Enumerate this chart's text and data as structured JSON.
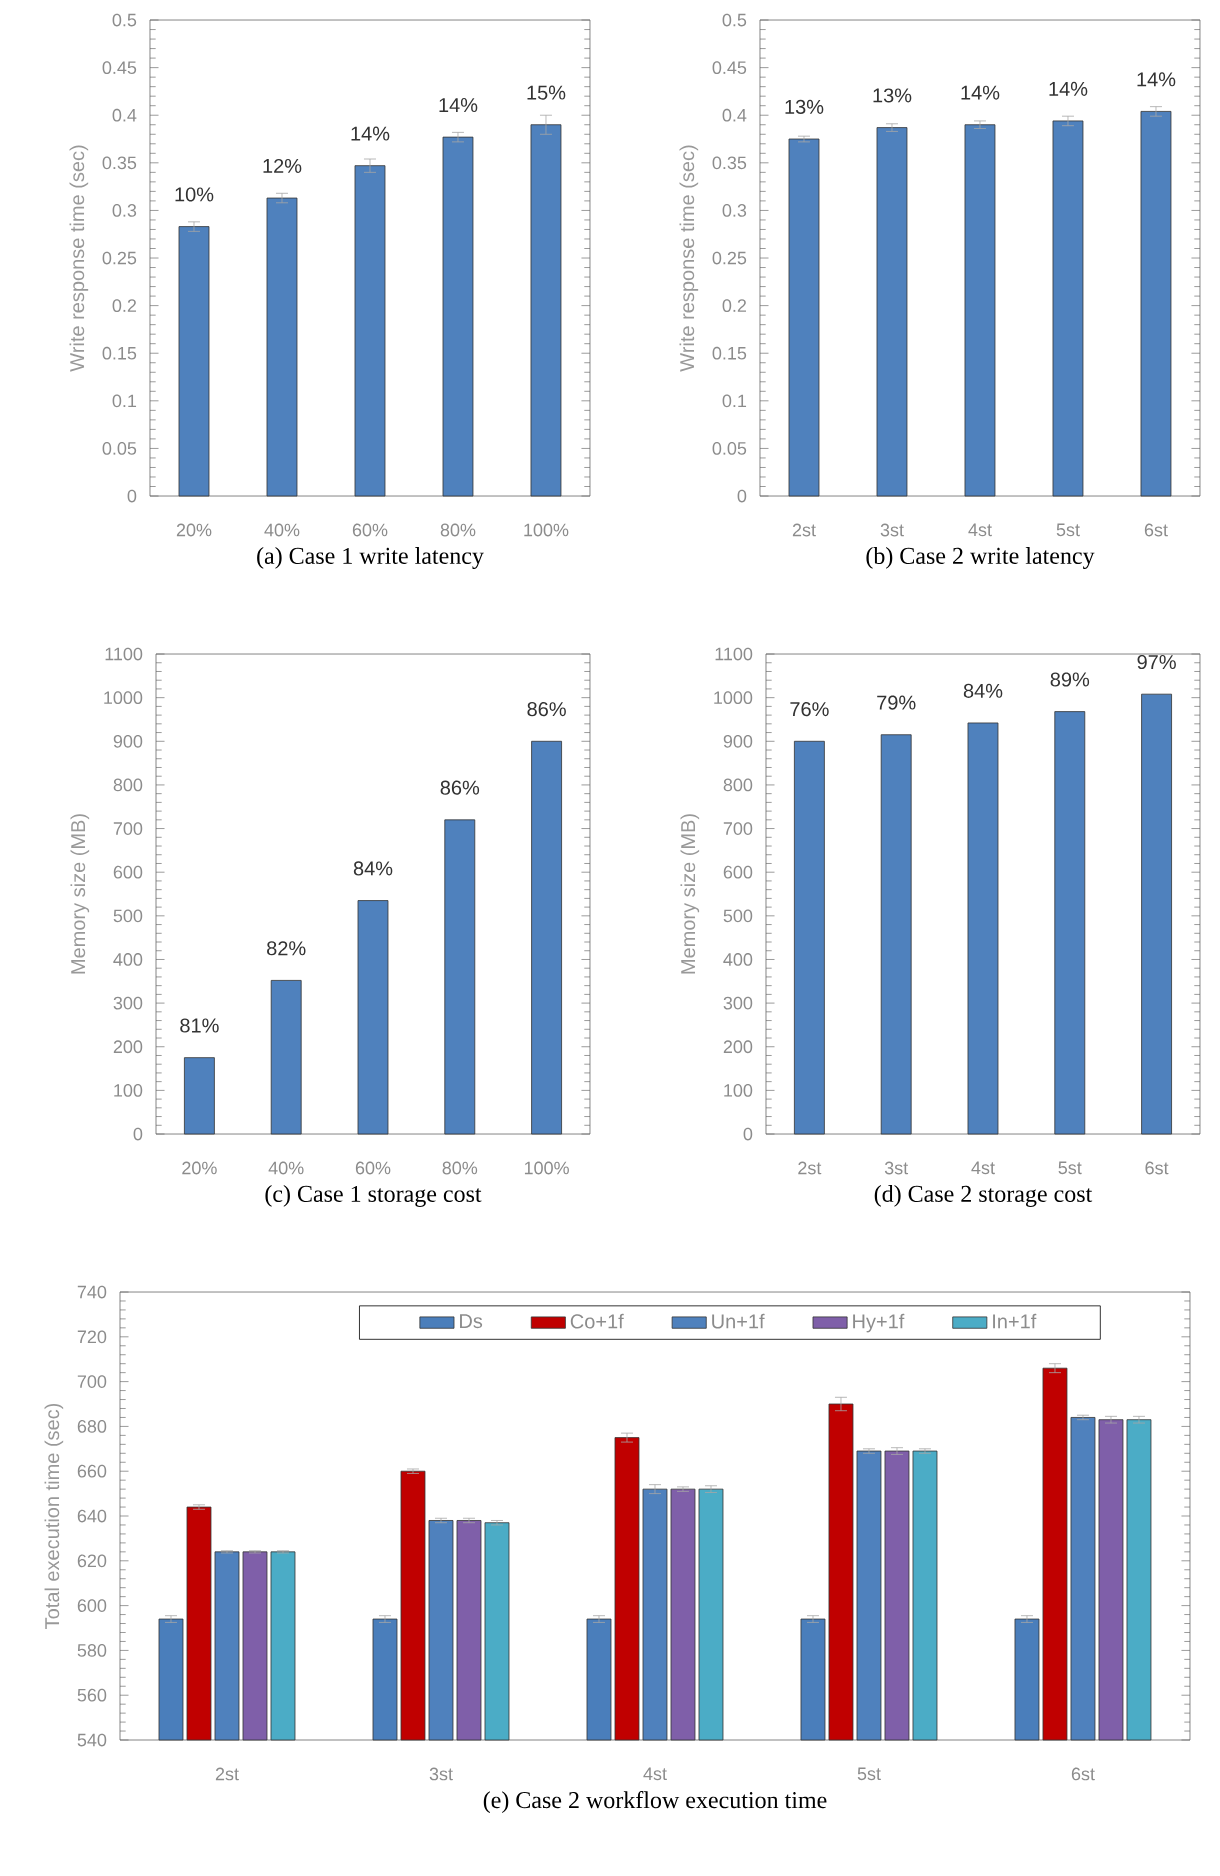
{
  "chart_data": [
    {
      "type": "bar",
      "title": "(a) Case 1 write latency",
      "ylabel": "Write response time (sec)",
      "categories": [
        "20%",
        "40%",
        "60%",
        "80%",
        "100%"
      ],
      "values": [
        0.283,
        0.313,
        0.347,
        0.377,
        0.39
      ],
      "errors": [
        0.005,
        0.005,
        0.007,
        0.005,
        0.01
      ],
      "color": "#4f81bd",
      "ylim": [
        0,
        0.5
      ],
      "yticks": [
        0,
        0.05,
        0.1,
        0.15,
        0.2,
        0.25,
        0.3,
        0.35,
        0.4,
        0.45,
        0.5
      ],
      "annotations": [
        {
          "text": "10%",
          "x": "20%",
          "y": 0.283
        },
        {
          "text": "12%",
          "x": "40%",
          "y": 0.313
        },
        {
          "text": "14%",
          "x": "60%",
          "y": 0.347
        },
        {
          "text": "14%",
          "x": "80%",
          "y": 0.377
        },
        {
          "text": "15%",
          "x": "100%",
          "y": 0.39
        }
      ]
    },
    {
      "type": "bar",
      "title": "(b) Case 2 write latency",
      "ylabel": "Write response time (sec)",
      "categories": [
        "2st",
        "3st",
        "4st",
        "5st",
        "6st"
      ],
      "values": [
        0.375,
        0.387,
        0.39,
        0.394,
        0.404
      ],
      "errors": [
        0.003,
        0.004,
        0.004,
        0.005,
        0.005
      ],
      "color": "#4f81bd",
      "ylim": [
        0,
        0.5
      ],
      "yticks": [
        0,
        0.05,
        0.1,
        0.15,
        0.2,
        0.25,
        0.3,
        0.35,
        0.4,
        0.45,
        0.5
      ],
      "annotations": [
        {
          "text": "13%",
          "x": "2st",
          "y": 0.375
        },
        {
          "text": "13%",
          "x": "3st",
          "y": 0.387
        },
        {
          "text": "14%",
          "x": "4st",
          "y": 0.39
        },
        {
          "text": "14%",
          "x": "5st",
          "y": 0.394
        },
        {
          "text": "14%",
          "x": "6st",
          "y": 0.404
        }
      ]
    },
    {
      "type": "bar",
      "title": "(c) Case 1 storage cost",
      "ylabel": "Memory size (MB)",
      "categories": [
        "20%",
        "40%",
        "60%",
        "80%",
        "100%"
      ],
      "values": [
        175,
        352,
        535,
        720,
        900
      ],
      "color": "#4f81bd",
      "ylim": [
        0,
        1100
      ],
      "yticks": [
        0,
        100,
        200,
        300,
        400,
        500,
        600,
        700,
        800,
        900,
        1000,
        1100
      ],
      "annotations": [
        {
          "text": "81%",
          "x": "20%",
          "y": 175
        },
        {
          "text": "82%",
          "x": "40%",
          "y": 352
        },
        {
          "text": "84%",
          "x": "60%",
          "y": 535
        },
        {
          "text": "86%",
          "x": "80%",
          "y": 720
        },
        {
          "text": "86%",
          "x": "100%",
          "y": 900
        }
      ]
    },
    {
      "type": "bar",
      "title": "(d) Case 2 storage cost",
      "ylabel": "Memory size (MB)",
      "categories": [
        "2st",
        "3st",
        "4st",
        "5st",
        "6st"
      ],
      "values": [
        900,
        915,
        942,
        968,
        1008
      ],
      "color": "#4f81bd",
      "ylim": [
        0,
        1100
      ],
      "yticks": [
        0,
        100,
        200,
        300,
        400,
        500,
        600,
        700,
        800,
        900,
        1000,
        1100
      ],
      "annotations": [
        {
          "text": "76%",
          "x": "2st",
          "y": 900
        },
        {
          "text": "79%",
          "x": "3st",
          "y": 915
        },
        {
          "text": "84%",
          "x": "4st",
          "y": 942
        },
        {
          "text": "89%",
          "x": "5st",
          "y": 968
        },
        {
          "text": "97%",
          "x": "6st",
          "y": 1008
        }
      ]
    },
    {
      "type": "bar",
      "title": "(e) Case 2 workflow execution time",
      "ylabel": "Total execution time (sec)",
      "categories": [
        "2st",
        "3st",
        "4st",
        "5st",
        "6st"
      ],
      "ylim": [
        540,
        740
      ],
      "yticks": [
        540,
        560,
        580,
        600,
        620,
        640,
        660,
        680,
        700,
        720,
        740
      ],
      "legend": "top",
      "series": [
        {
          "name": "Ds",
          "color": "#4a7ebb",
          "values": [
            594,
            594,
            594,
            594,
            594
          ],
          "errors": [
            1.5,
            1.5,
            1.5,
            1.5,
            1.5
          ]
        },
        {
          "name": "Co+1f",
          "color": "#c00000",
          "values": [
            644,
            660,
            675,
            690,
            706
          ],
          "errors": [
            1,
            1,
            2,
            3,
            2
          ]
        },
        {
          "name": "Un+1f",
          "color": "#4f81bd",
          "values": [
            624,
            638,
            652,
            669,
            684
          ],
          "errors": [
            0.5,
            1,
            2,
            1,
            1
          ]
        },
        {
          "name": "Hy+1f",
          "color": "#7f5fa9",
          "values": [
            624,
            638,
            652,
            669,
            683
          ],
          "errors": [
            0.5,
            1,
            1,
            1.5,
            1.5
          ]
        },
        {
          "name": "In+1f",
          "color": "#4bacc6",
          "values": [
            624,
            637,
            652,
            669,
            683
          ],
          "errors": [
            0.5,
            1,
            1.5,
            1,
            1.5
          ]
        }
      ]
    }
  ]
}
